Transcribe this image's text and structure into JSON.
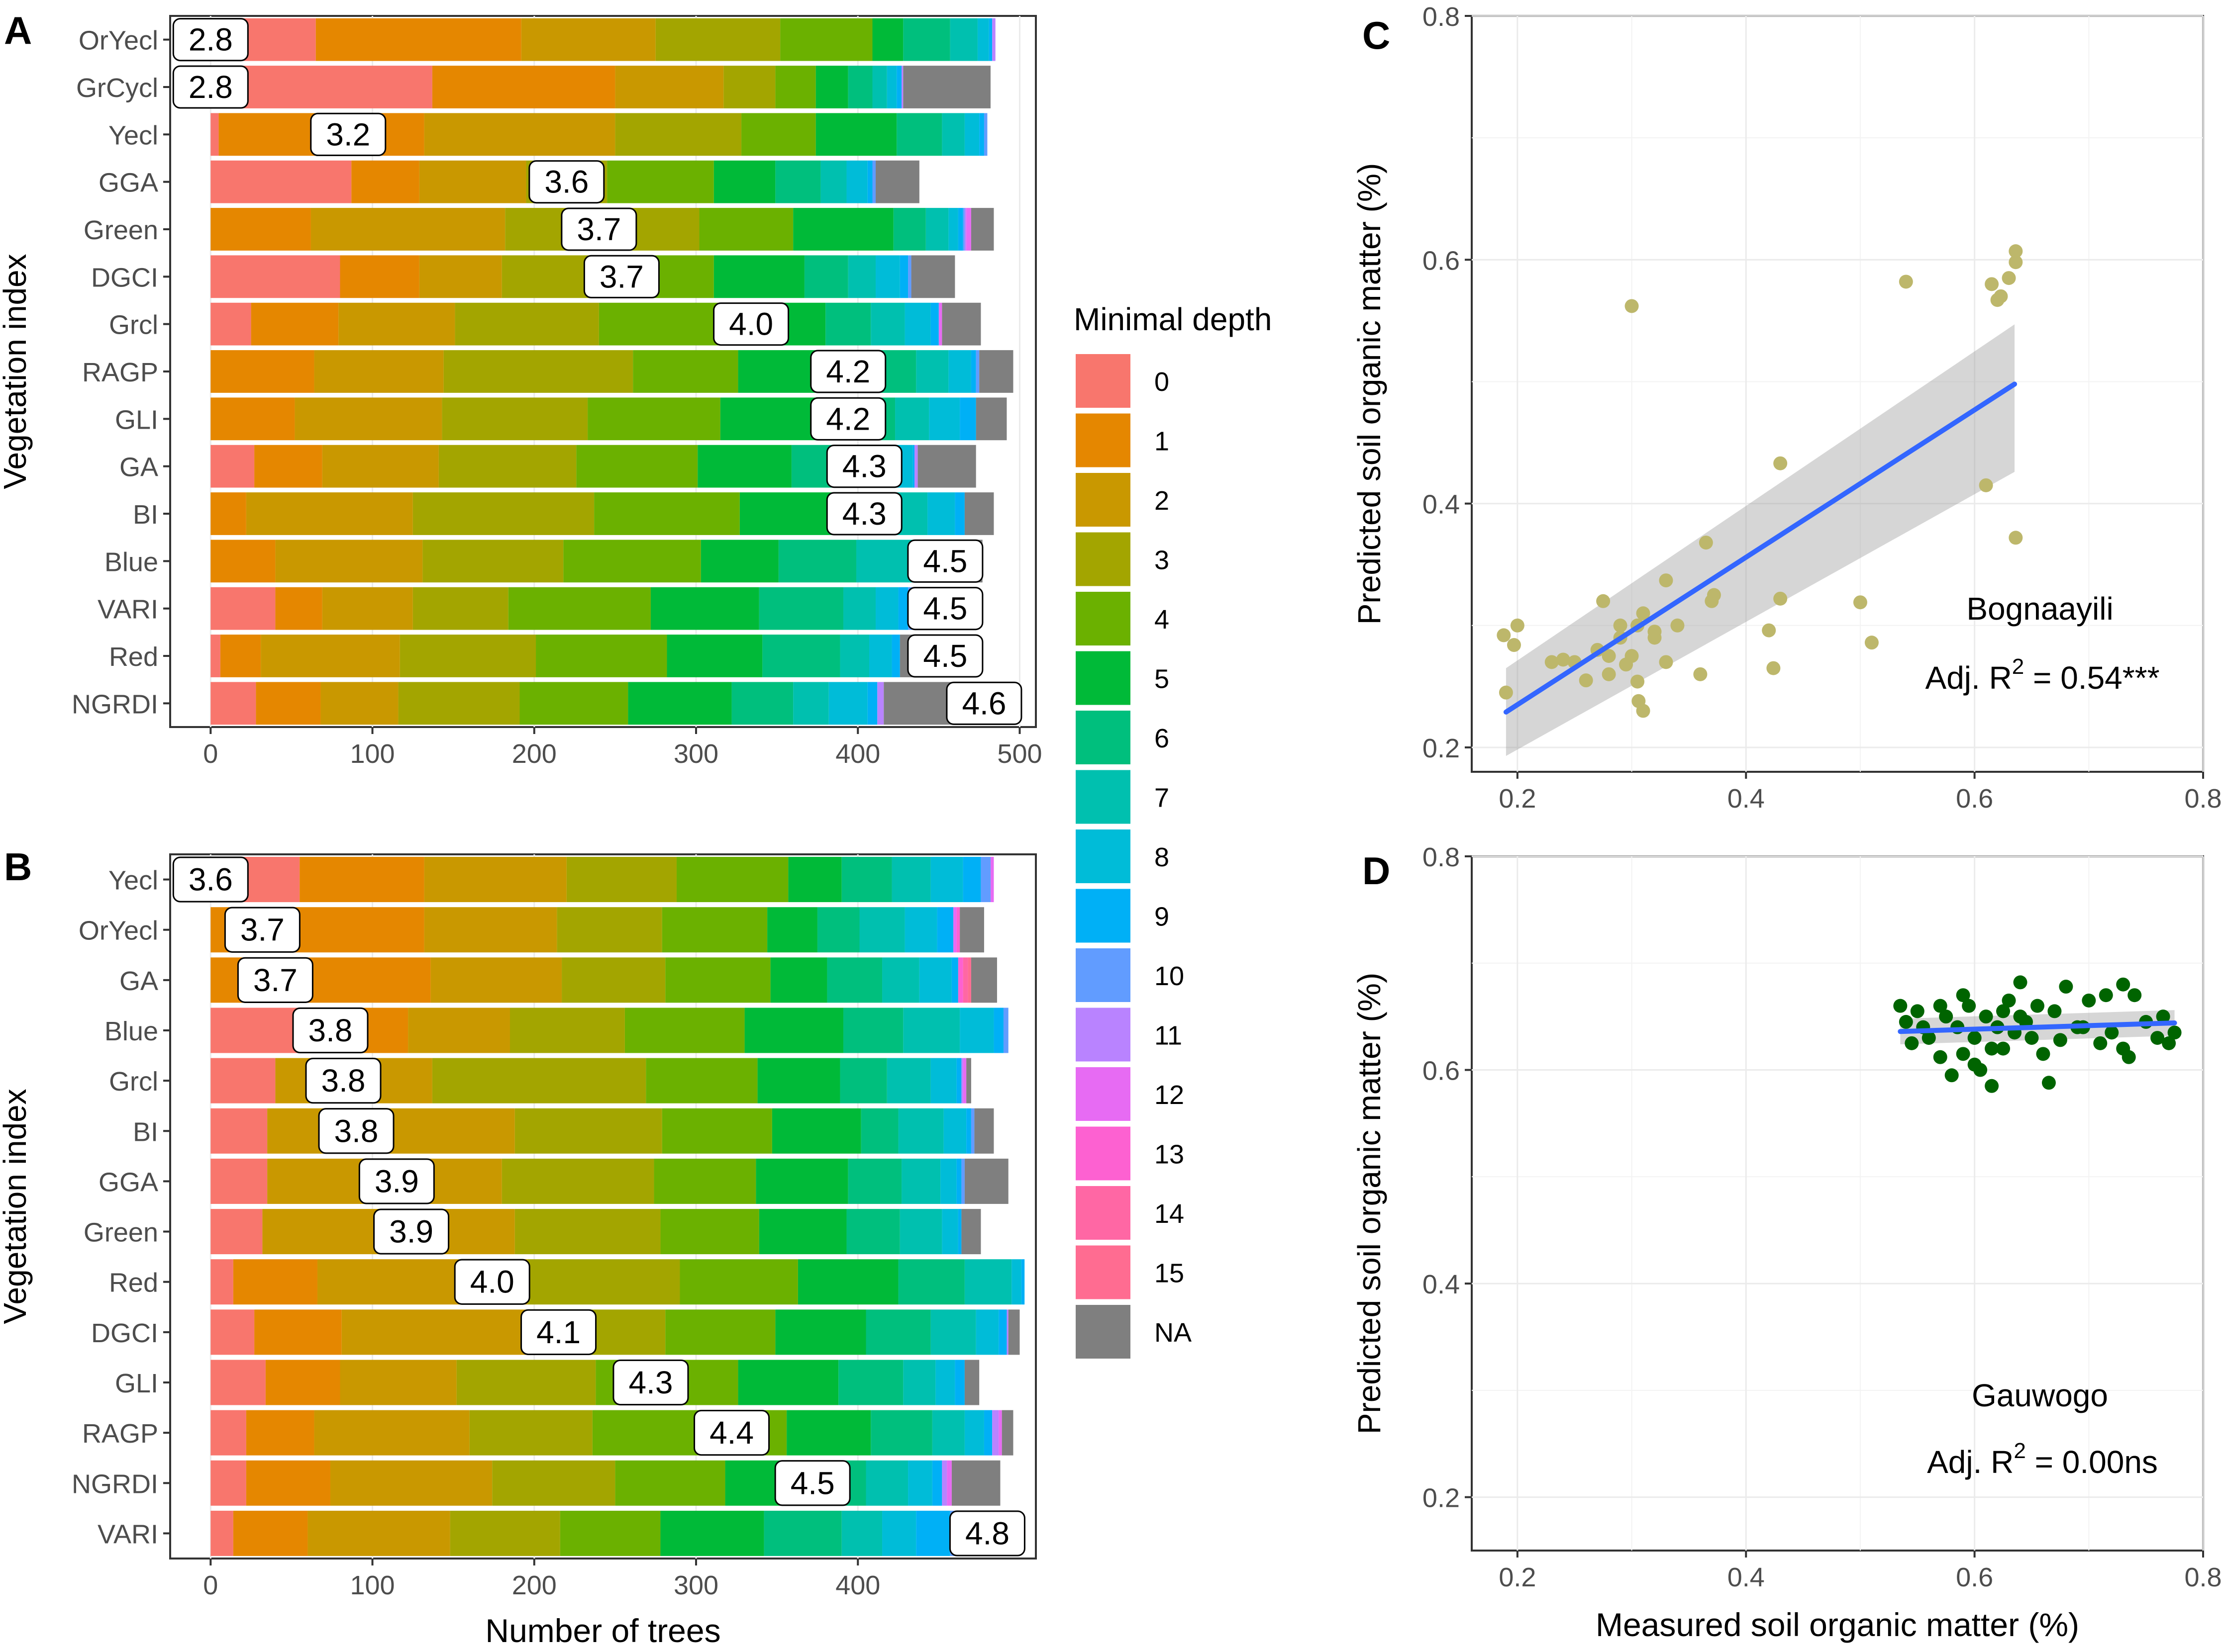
{
  "figure": {
    "legend_title": "Minimal depth",
    "legend_labels": [
      "0",
      "1",
      "2",
      "3",
      "4",
      "5",
      "6",
      "7",
      "8",
      "9",
      "10",
      "11",
      "12",
      "13",
      "14",
      "15",
      "NA"
    ],
    "legend_colors": [
      "#F8766D",
      "#E58700",
      "#C99800",
      "#A3A500",
      "#6BB100",
      "#00BA38",
      "#00BF7D",
      "#00C0AF",
      "#00BCD8",
      "#00B0F6",
      "#619CFF",
      "#B983FF",
      "#E76BF3",
      "#FD61D1",
      "#FF67A4",
      "#FF6C91",
      "#7F7F7F"
    ],
    "chart_a_mean_depths": [
      "2.8",
      "2.8",
      "3.2",
      "3.6",
      "3.7",
      "3.7",
      "4.0",
      "4.2",
      "4.2",
      "4.3",
      "4.3",
      "4.5",
      "4.5",
      "4.5",
      "4.6"
    ],
    "chart_b_mean_depths": [
      "3.6",
      "3.7",
      "3.7",
      "3.8",
      "3.8",
      "3.8",
      "3.9",
      "3.9",
      "4.0",
      "4.1",
      "4.3",
      "4.4",
      "4.5",
      "4.8"
    ]
  },
  "chart_data": [
    {
      "panel": "A",
      "type": "bar",
      "orientation": "horizontal",
      "stacked": true,
      "xlabel": "",
      "ylabel": "Vegetation index",
      "xlim": [
        -25,
        510
      ],
      "xticks": [
        "0",
        "100",
        "200",
        "300",
        "400",
        "500"
      ],
      "xtick_values": [
        0,
        100,
        200,
        300,
        400,
        500
      ],
      "categories": [
        "OrYecl",
        "GrCycl",
        "Yecl",
        "GGA",
        "Green",
        "DGCI",
        "Grcl",
        "RAGP",
        "GLI",
        "GA",
        "BI",
        "Blue",
        "VARI",
        "Red",
        "NGRDI"
      ],
      "labels": [
        "2.8",
        "2.8",
        "3.2",
        "3.6",
        "3.7",
        "3.7",
        "4.0",
        "4.2",
        "4.2",
        "4.3",
        "4.3",
        "4.5",
        "4.5",
        "4.5",
        "4.6"
      ],
      "label_values": [
        0,
        0,
        85,
        220,
        240,
        254,
        334,
        394,
        394,
        404,
        404,
        454,
        454,
        454,
        478
      ],
      "segments": [
        [
          65,
          127,
          83,
          77,
          57,
          19,
          29,
          17,
          7,
          2,
          0,
          2,
          0,
          0,
          0,
          0,
          0
        ],
        [
          137,
          113,
          67,
          32,
          25,
          20,
          15,
          9,
          6,
          3,
          0,
          1,
          0,
          0,
          0,
          0,
          54
        ],
        [
          5,
          127,
          118,
          78,
          46,
          50,
          28,
          14,
          9,
          3,
          2,
          0,
          0,
          0,
          0,
          0,
          0
        ],
        [
          87,
          42,
          66,
          50,
          66,
          38,
          28,
          16,
          13,
          3,
          2,
          0,
          0,
          0,
          0,
          0,
          27
        ],
        [
          0,
          62,
          120,
          120,
          58,
          62,
          20,
          14,
          6,
          3,
          1,
          1,
          3,
          0,
          0,
          0,
          14
        ],
        [
          80,
          49,
          51,
          69,
          62,
          56,
          27,
          17,
          15,
          5,
          2,
          0,
          0,
          0,
          0,
          0,
          27
        ],
        [
          25,
          54,
          72,
          89,
          78,
          62,
          28,
          21,
          16,
          5,
          0,
          0,
          2,
          0,
          0,
          0,
          24
        ],
        [
          0,
          64,
          80,
          117,
          65,
          72,
          38,
          20,
          14,
          3,
          2,
          0,
          0,
          0,
          0,
          0,
          21
        ],
        [
          0,
          52,
          91,
          90,
          82,
          68,
          40,
          21,
          19,
          10,
          0,
          0,
          0,
          0,
          0,
          0,
          19
        ],
        [
          27,
          42,
          72,
          85,
          75,
          58,
          43,
          21,
          11,
          1,
          0,
          2,
          0,
          0,
          0,
          0,
          36
        ],
        [
          0,
          22,
          103,
          112,
          90,
          58,
          34,
          24,
          17,
          6,
          0,
          0,
          0,
          0,
          0,
          0,
          18
        ],
        [
          0,
          40,
          91,
          87,
          85,
          48,
          48,
          35,
          26,
          8,
          5,
          0,
          0,
          0,
          0,
          0,
          4
        ],
        [
          40,
          29,
          56,
          59,
          88,
          67,
          52,
          20,
          14,
          6,
          5,
          2,
          2,
          0,
          0,
          0,
          28
        ],
        [
          6,
          25,
          86,
          84,
          81,
          59,
          48,
          18,
          14,
          5,
          0,
          0,
          0,
          0,
          0,
          0,
          48
        ],
        [
          28,
          40,
          48,
          75,
          67,
          64,
          38,
          22,
          24,
          6,
          0,
          4,
          0,
          0,
          0,
          0,
          48
        ]
      ]
    },
    {
      "panel": "B",
      "type": "bar",
      "orientation": "horizontal",
      "stacked": true,
      "xlabel": "Number of trees",
      "ylabel": "Vegetation index",
      "xlim": [
        -25,
        510
      ],
      "xticks": [
        "0",
        "100",
        "200",
        "300",
        "400"
      ],
      "xtick_values": [
        0,
        100,
        200,
        300,
        400
      ],
      "categories": [
        "Yecl",
        "OrYecl",
        "GA",
        "Blue",
        "Grcl",
        "BI",
        "GGA",
        "Green",
        "Red",
        "DGCI",
        "GLI",
        "RAGP",
        "NGRDI",
        "VARI"
      ],
      "labels": [
        "3.6",
        "3.7",
        "3.7",
        "3.8",
        "3.8",
        "3.8",
        "3.9",
        "3.9",
        "4.0",
        "4.1",
        "4.3",
        "4.4",
        "4.5",
        "4.8"
      ],
      "label_values": [
        0,
        32,
        40,
        74,
        82,
        90,
        115,
        124,
        174,
        215,
        272,
        322,
        372,
        480
      ],
      "segments": [
        [
          55,
          77,
          88,
          68,
          69,
          33,
          31,
          24,
          20,
          11,
          6,
          0,
          2,
          0,
          0,
          0,
          0
        ],
        [
          0,
          132,
          82,
          65,
          65,
          31,
          26,
          28,
          20,
          10,
          0,
          0,
          2,
          2,
          0,
          0,
          15
        ],
        [
          0,
          136,
          81,
          64,
          65,
          35,
          34,
          23,
          20,
          4,
          0,
          0,
          0,
          3,
          3,
          2,
          16
        ],
        [
          55,
          67,
          63,
          71,
          74,
          61,
          37,
          35,
          21,
          6,
          3,
          0,
          0,
          0,
          0,
          0,
          0
        ],
        [
          40,
          0,
          97,
          132,
          69,
          51,
          29,
          27,
          16,
          3,
          0,
          1,
          2,
          0,
          0,
          0,
          3
        ],
        [
          35,
          0,
          153,
          91,
          68,
          55,
          23,
          28,
          14,
          3,
          2,
          0,
          0,
          0,
          0,
          0,
          12
        ],
        [
          35,
          0,
          145,
          94,
          63,
          57,
          33,
          24,
          10,
          3,
          2,
          0,
          0,
          0,
          0,
          0,
          27
        ],
        [
          32,
          0,
          156,
          90,
          61,
          54,
          33,
          26,
          10,
          2,
          0,
          0,
          0,
          0,
          0,
          0,
          12
        ],
        [
          14,
          52,
          130,
          94,
          73,
          62,
          41,
          29,
          6,
          2,
          0,
          0,
          0,
          0,
          0,
          0,
          0
        ],
        [
          27,
          54,
          120,
          80,
          68,
          56,
          40,
          28,
          14,
          5,
          0,
          1,
          0,
          0,
          0,
          0,
          7
        ],
        [
          34,
          46,
          72,
          86,
          88,
          62,
          40,
          20,
          12,
          6,
          0,
          0,
          0,
          0,
          0,
          0,
          9
        ],
        [
          22,
          42,
          96,
          76,
          120,
          52,
          38,
          20,
          12,
          5,
          0,
          4,
          2,
          0,
          0,
          0,
          7
        ],
        [
          22,
          52,
          100,
          76,
          68,
          52,
          35,
          26,
          15,
          6,
          0,
          3,
          3,
          0,
          0,
          0,
          30
        ],
        [
          14,
          46,
          88,
          68,
          62,
          64,
          48,
          25,
          21,
          21,
          4,
          0,
          2,
          0,
          0,
          0,
          4
        ]
      ]
    },
    {
      "panel": "C",
      "type": "scatter",
      "annotation": "Bognaayili",
      "stat_prefix": "Adj. R",
      "stat_sup": "2",
      "stat_value": " = 0.54***",
      "xlabel": "",
      "ylabel": "Predicted soil organic matter (%)",
      "xlim": [
        0.16,
        0.8
      ],
      "ylim": [
        0.18,
        0.8
      ],
      "xticks": [
        "0.2",
        "0.4",
        "0.6",
        "0.8"
      ],
      "yticks": [
        "0.2",
        "0.4",
        "0.6",
        "0.8"
      ],
      "xtick_values": [
        0.2,
        0.4,
        0.6,
        0.8
      ],
      "ytick_values": [
        0.2,
        0.4,
        0.6,
        0.8
      ],
      "point_color": "#BDB76B",
      "fit": {
        "x": [
          0.19,
          0.635
        ],
        "y": [
          0.229,
          0.498
        ],
        "se_low": [
          0.193,
          0.426
        ],
        "se_high": [
          0.265,
          0.547
        ]
      },
      "x": [
        0.188,
        0.19,
        0.2,
        0.197,
        0.23,
        0.24,
        0.25,
        0.26,
        0.27,
        0.28,
        0.29,
        0.295,
        0.3,
        0.305,
        0.31,
        0.32,
        0.33,
        0.28,
        0.275,
        0.29,
        0.305,
        0.306,
        0.31,
        0.32,
        0.33,
        0.34,
        0.36,
        0.365,
        0.37,
        0.372,
        0.42,
        0.43,
        0.424,
        0.43,
        0.5,
        0.51,
        0.3,
        0.54,
        0.615,
        0.62,
        0.623,
        0.63,
        0.636,
        0.636,
        0.61,
        0.636
      ],
      "y": [
        0.292,
        0.245,
        0.3,
        0.284,
        0.27,
        0.272,
        0.27,
        0.255,
        0.28,
        0.26,
        0.29,
        0.268,
        0.275,
        0.3,
        0.23,
        0.29,
        0.27,
        0.275,
        0.32,
        0.3,
        0.254,
        0.238,
        0.31,
        0.295,
        0.337,
        0.3,
        0.26,
        0.368,
        0.32,
        0.325,
        0.296,
        0.433,
        0.265,
        0.322,
        0.319,
        0.286,
        0.562,
        0.582,
        0.58,
        0.567,
        0.57,
        0.585,
        0.607,
        0.598,
        0.415,
        0.372
      ]
    },
    {
      "panel": "D",
      "type": "scatter",
      "annotation": "Gauwogo",
      "stat_prefix": "Adj. R",
      "stat_sup": "2",
      "stat_value": " = 0.00ns",
      "xlabel": "Measured soil organic matter (%)",
      "ylabel": "Predicted soil organic matter (%)",
      "xlim": [
        0.16,
        0.8
      ],
      "ylim": [
        0.15,
        0.8
      ],
      "xticks": [
        "0.2",
        "0.4",
        "0.6",
        "0.8"
      ],
      "yticks": [
        "0.2",
        "0.4",
        "0.6",
        "0.8"
      ],
      "xtick_values": [
        0.2,
        0.4,
        0.6,
        0.8
      ],
      "ytick_values": [
        0.2,
        0.4,
        0.6,
        0.8
      ],
      "point_color": "#006400",
      "fit": {
        "x": [
          0.535,
          0.775
        ],
        "y": [
          0.636,
          0.644
        ],
        "se_low": [
          0.624,
          0.632
        ],
        "se_high": [
          0.648,
          0.656
        ]
      },
      "x": [
        0.535,
        0.54,
        0.55,
        0.56,
        0.57,
        0.575,
        0.58,
        0.585,
        0.59,
        0.595,
        0.6,
        0.6,
        0.61,
        0.615,
        0.62,
        0.625,
        0.63,
        0.635,
        0.64,
        0.645,
        0.65,
        0.66,
        0.665,
        0.67,
        0.68,
        0.69,
        0.7,
        0.71,
        0.72,
        0.73,
        0.735,
        0.74,
        0.75,
        0.76,
        0.765,
        0.77,
        0.775,
        0.545,
        0.555,
        0.57,
        0.59,
        0.605,
        0.615,
        0.625,
        0.64,
        0.655,
        0.675,
        0.695,
        0.715,
        0.73
      ],
      "y": [
        0.66,
        0.645,
        0.655,
        0.63,
        0.612,
        0.65,
        0.595,
        0.64,
        0.615,
        0.66,
        0.605,
        0.63,
        0.65,
        0.585,
        0.64,
        0.62,
        0.665,
        0.635,
        0.682,
        0.645,
        0.63,
        0.615,
        0.588,
        0.655,
        0.678,
        0.64,
        0.665,
        0.625,
        0.635,
        0.68,
        0.612,
        0.67,
        0.645,
        0.63,
        0.65,
        0.625,
        0.635,
        0.625,
        0.64,
        0.66,
        0.67,
        0.6,
        0.62,
        0.655,
        0.65,
        0.66,
        0.628,
        0.64,
        0.67,
        0.62
      ]
    }
  ]
}
